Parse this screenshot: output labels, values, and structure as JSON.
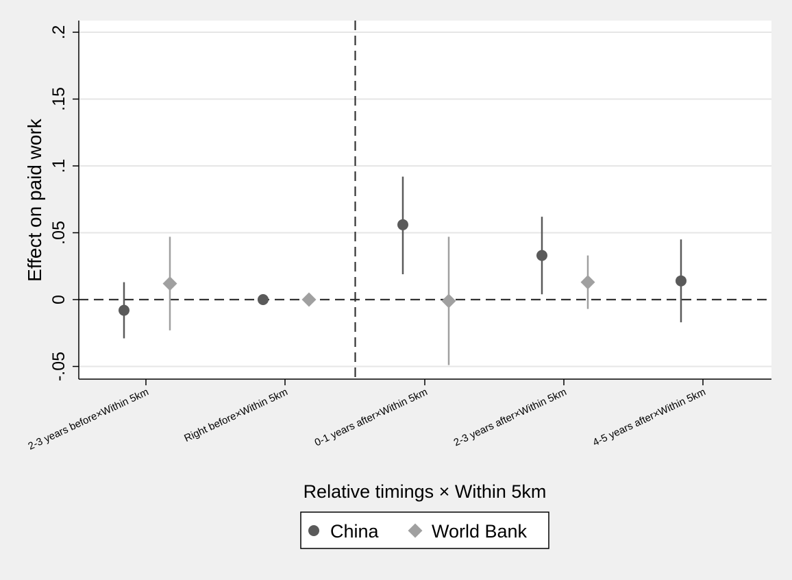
{
  "chart_data": {
    "type": "scatter",
    "xlabel": "Relative timings × Within 5km",
    "ylabel": "Effect on paid work",
    "ylim": [
      -0.06,
      0.21
    ],
    "yticks": [
      -0.05,
      0,
      0.05,
      0.1,
      0.15,
      0.2
    ],
    "ytick_labels": [
      "-.05",
      "0",
      ".05",
      ".1",
      ".15",
      ".2"
    ],
    "categories": [
      "2-3 years before×Within 5km",
      "Right before×Within 5km",
      "0-1 years after×Within 5km",
      "2-3 years after×Within 5km",
      "4-5 years after×Within 5km"
    ],
    "reference_lines": {
      "y": 0,
      "x_between_categories": [
        1,
        2
      ]
    },
    "grid": true,
    "legend_position": "bottom",
    "series": [
      {
        "name": "China",
        "marker": "circle",
        "color": "#5a5a5a",
        "values": [
          -0.008,
          0.0,
          0.056,
          0.033,
          0.014
        ],
        "ci_low": [
          -0.029,
          null,
          0.019,
          0.004,
          -0.017
        ],
        "ci_high": [
          0.013,
          null,
          0.092,
          0.062,
          0.045
        ]
      },
      {
        "name": "World Bank",
        "marker": "diamond",
        "color": "#a0a0a0",
        "values": [
          0.012,
          0.0,
          -0.001,
          0.013,
          null
        ],
        "ci_low": [
          -0.023,
          null,
          -0.049,
          -0.007,
          null
        ],
        "ci_high": [
          0.047,
          null,
          0.047,
          0.033,
          null
        ]
      }
    ]
  }
}
